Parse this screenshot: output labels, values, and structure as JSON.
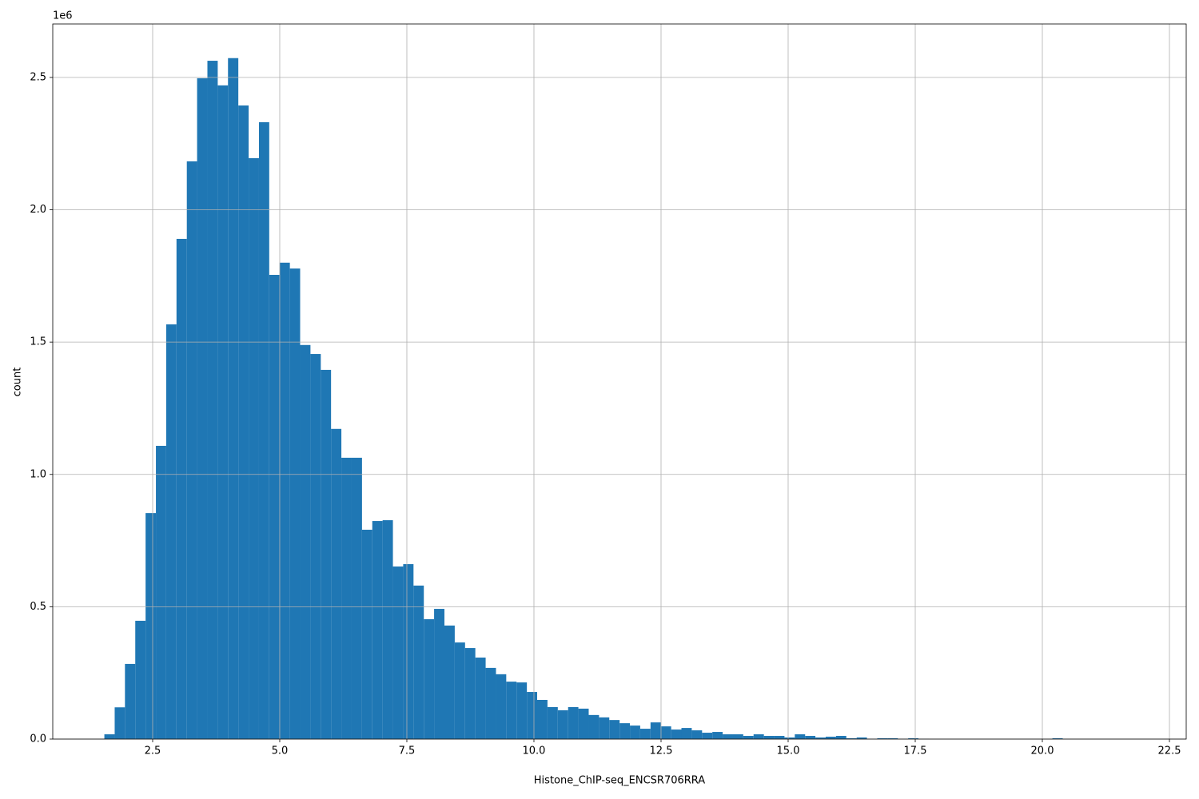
{
  "chart_data": {
    "type": "histogram",
    "xlabel": "Histone_ChIP-seq_ENCSR706RRA",
    "ylabel": "count",
    "y_offset_label": "1e6",
    "color": "#1f77b4",
    "grid": true,
    "xlim": [
      0.535,
      22.83
    ],
    "ylim": [
      0,
      2.702
    ],
    "xticks": [
      2.5,
      {
        "value": 5,
        "label": "5.0"
      },
      7.5,
      {
        "value": 10,
        "label": "10.0"
      },
      12.5,
      {
        "value": 15,
        "label": "15.0"
      },
      17.5,
      {
        "value": 20,
        "label": "20.0"
      },
      22.5
    ],
    "yticks": [
      {
        "value": 0,
        "label": "0.0"
      },
      0.5,
      {
        "value": 1,
        "label": "1.0"
      },
      1.5,
      {
        "value": 2,
        "label": "2.0"
      },
      2.5
    ],
    "bins": [
      1.55,
      1.753,
      1.955,
      2.158,
      2.361,
      2.564,
      2.766,
      2.969,
      3.172,
      3.374,
      3.577,
      3.78,
      3.982,
      4.185,
      4.388,
      4.591,
      4.793,
      4.996,
      5.199,
      5.401,
      5.604,
      5.807,
      6.009,
      6.212,
      6.415,
      6.618,
      6.82,
      7.023,
      7.226,
      7.428,
      7.631,
      7.834,
      8.036,
      8.239,
      8.442,
      8.645,
      8.847,
      9.05,
      9.253,
      9.455,
      9.658,
      9.861,
      10.063,
      10.266,
      10.469,
      10.672,
      10.874,
      11.077,
      11.28,
      11.482,
      11.685,
      11.888,
      12.09,
      12.293,
      12.496,
      12.699,
      12.901,
      13.104,
      13.307,
      13.509,
      13.712,
      13.915,
      14.117,
      14.32,
      14.523,
      14.726,
      14.928,
      15.131,
      15.334,
      15.536,
      15.739,
      15.942,
      16.144,
      16.347,
      16.55,
      16.753,
      16.955,
      17.158,
      17.361,
      17.563,
      17.766,
      17.969,
      18.171,
      18.374,
      18.577,
      18.78,
      18.982,
      19.185,
      19.388,
      19.59,
      19.793,
      19.996,
      20.198,
      20.401,
      20.604,
      20.807,
      21.009,
      21.212,
      21.415,
      21.617,
      21.82
    ],
    "values": [
      0.018,
      0.12,
      0.284,
      0.447,
      0.854,
      1.108,
      1.567,
      1.89,
      2.183,
      2.497,
      2.563,
      2.47,
      2.573,
      2.394,
      2.195,
      2.331,
      1.754,
      1.8,
      1.778,
      1.489,
      1.455,
      1.395,
      1.172,
      1.063,
      1.063,
      0.791,
      0.824,
      0.827,
      0.652,
      0.661,
      0.58,
      0.453,
      0.492,
      0.429,
      0.365,
      0.344,
      0.308,
      0.269,
      0.245,
      0.217,
      0.214,
      0.178,
      0.148,
      0.121,
      0.109,
      0.121,
      0.115,
      0.091,
      0.082,
      0.072,
      0.06,
      0.051,
      0.039,
      0.063,
      0.048,
      0.036,
      0.042,
      0.033,
      0.024,
      0.027,
      0.018,
      0.018,
      0.012,
      0.018,
      0.012,
      0.012,
      0.006,
      0.018,
      0.012,
      0.006,
      0.009,
      0.012,
      0.003,
      0.006,
      0.001,
      0.003,
      0.003,
      0.001,
      0.003,
      0.001,
      0,
      0,
      0,
      0,
      0,
      0,
      0,
      0,
      0,
      0,
      0,
      0,
      0.003,
      0,
      0,
      0,
      0,
      0,
      0,
      0
    ]
  }
}
